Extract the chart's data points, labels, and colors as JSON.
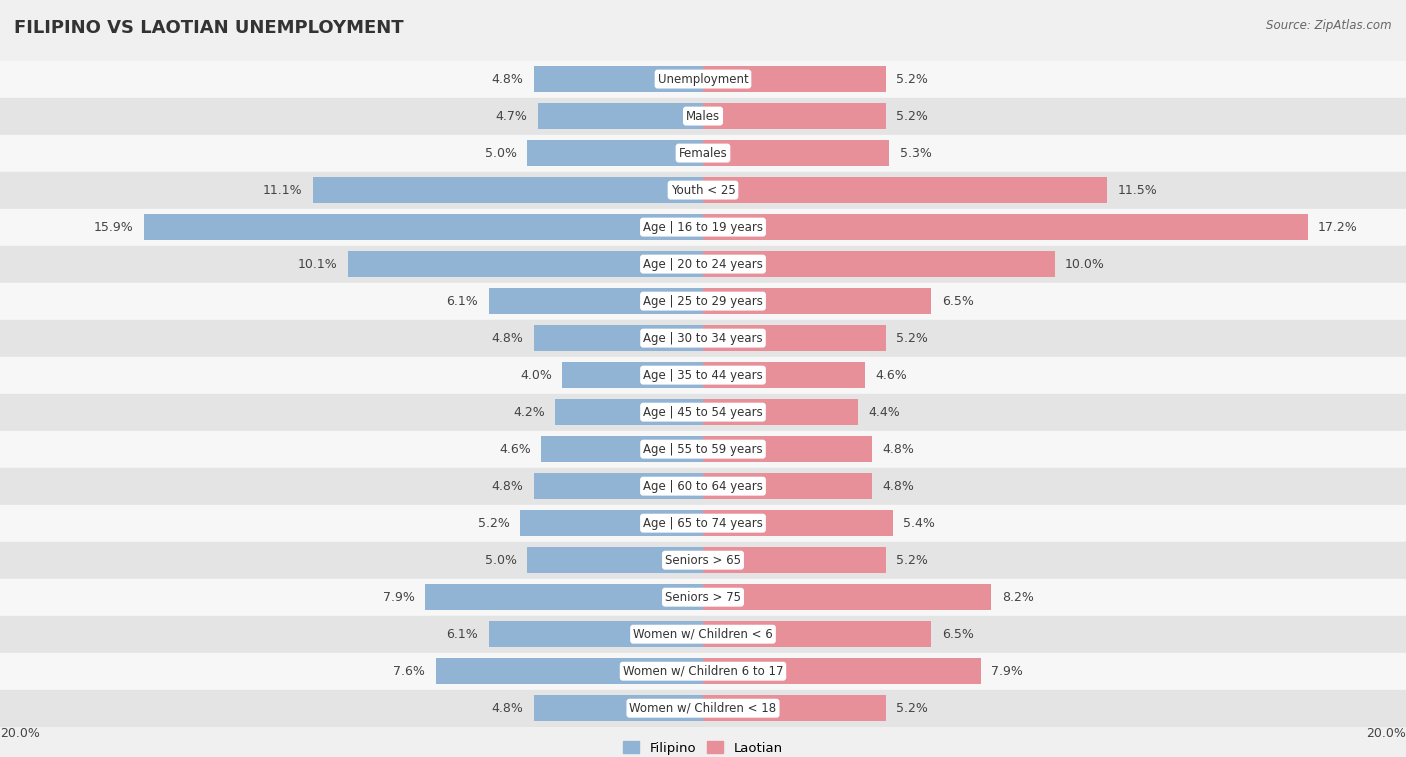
{
  "title": "FILIPINO VS LAOTIAN UNEMPLOYMENT",
  "source": "Source: ZipAtlas.com",
  "categories": [
    "Unemployment",
    "Males",
    "Females",
    "Youth < 25",
    "Age | 16 to 19 years",
    "Age | 20 to 24 years",
    "Age | 25 to 29 years",
    "Age | 30 to 34 years",
    "Age | 35 to 44 years",
    "Age | 45 to 54 years",
    "Age | 55 to 59 years",
    "Age | 60 to 64 years",
    "Age | 65 to 74 years",
    "Seniors > 65",
    "Seniors > 75",
    "Women w/ Children < 6",
    "Women w/ Children 6 to 17",
    "Women w/ Children < 18"
  ],
  "filipino": [
    4.8,
    4.7,
    5.0,
    11.1,
    15.9,
    10.1,
    6.1,
    4.8,
    4.0,
    4.2,
    4.6,
    4.8,
    5.2,
    5.0,
    7.9,
    6.1,
    7.6,
    4.8
  ],
  "laotian": [
    5.2,
    5.2,
    5.3,
    11.5,
    17.2,
    10.0,
    6.5,
    5.2,
    4.6,
    4.4,
    4.8,
    4.8,
    5.4,
    5.2,
    8.2,
    6.5,
    7.9,
    5.2
  ],
  "filipino_color": "#92b4d4",
  "laotian_color": "#e8909a",
  "max_val": 20.0,
  "bg_color": "#f0f0f0",
  "row_color_light": "#f7f7f7",
  "row_color_dark": "#e4e4e4",
  "bar_height": 0.7,
  "legend_filipino": "Filipino",
  "legend_laotian": "Laotian",
  "value_fontsize": 9,
  "label_fontsize": 8.5,
  "title_fontsize": 13
}
